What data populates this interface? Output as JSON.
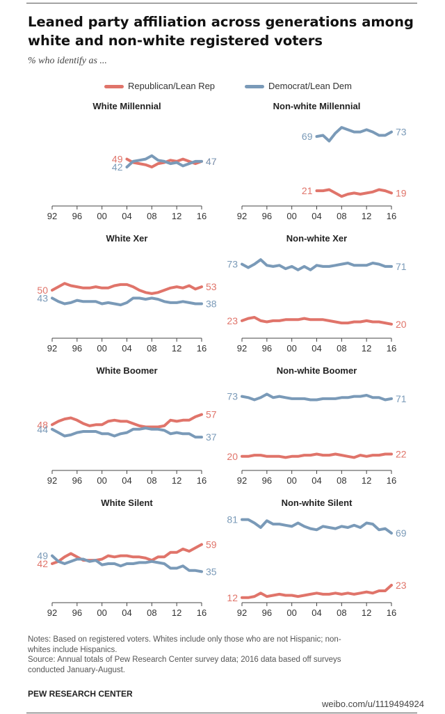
{
  "header": {
    "title_line1": "Leaned party affiliation across generations among",
    "title_line2": "white and non-white registered voters",
    "subtitle": "% who identify as ..."
  },
  "legend": {
    "republican": "Republican/Lean Rep",
    "democrat": "Democrat/Lean Dem"
  },
  "colors": {
    "republican": "#e0746a",
    "democrat": "#7a9ab8",
    "axis": "#444444"
  },
  "chart_data": [
    {
      "type": "line",
      "title": "White Millennial",
      "x_ticks": [
        "92",
        "96",
        "00",
        "04",
        "08",
        "12",
        "16"
      ],
      "xlim": [
        1992,
        2016
      ],
      "ylim": [
        10,
        90
      ],
      "series": [
        {
          "name": "Republican/Lean Rep",
          "x": [
            2004,
            2005,
            2006,
            2007,
            2008,
            2009,
            2010,
            2011,
            2012,
            2013,
            2014,
            2015,
            2016
          ],
          "values": [
            49,
            46,
            45,
            44,
            42,
            45,
            46,
            48,
            47,
            49,
            47,
            45,
            47
          ],
          "start_label": "49",
          "end_label": "47"
        },
        {
          "name": "Democrat/Lean Dem",
          "x": [
            2004,
            2005,
            2006,
            2007,
            2008,
            2009,
            2010,
            2011,
            2012,
            2013,
            2014,
            2015,
            2016
          ],
          "values": [
            42,
            47,
            48,
            49,
            52,
            48,
            47,
            45,
            46,
            43,
            45,
            47,
            47
          ],
          "start_label": "42",
          "end_label": "47"
        }
      ]
    },
    {
      "type": "line",
      "title": "Non-white Millennial",
      "x_ticks": [
        "92",
        "96",
        "00",
        "04",
        "08",
        "12",
        "16"
      ],
      "xlim": [
        1992,
        2016
      ],
      "ylim": [
        10,
        90
      ],
      "series": [
        {
          "name": "Republican/Lean Rep",
          "x": [
            2004,
            2005,
            2006,
            2007,
            2008,
            2009,
            2010,
            2011,
            2012,
            2013,
            2014,
            2015,
            2016
          ],
          "values": [
            21,
            21,
            22,
            19,
            16,
            18,
            19,
            18,
            19,
            20,
            22,
            21,
            19
          ],
          "start_label": "21",
          "end_label": "19"
        },
        {
          "name": "Democrat/Lean Dem",
          "x": [
            2004,
            2005,
            2006,
            2007,
            2008,
            2009,
            2010,
            2011,
            2012,
            2013,
            2014,
            2015,
            2016
          ],
          "values": [
            69,
            70,
            65,
            72,
            77,
            75,
            73,
            73,
            75,
            73,
            70,
            70,
            73
          ],
          "start_label": "69",
          "end_label": "73"
        }
      ]
    },
    {
      "type": "line",
      "title": "White Xer",
      "x_ticks": [
        "92",
        "96",
        "00",
        "04",
        "08",
        "12",
        "16"
      ],
      "xlim": [
        1992,
        2016
      ],
      "ylim": [
        10,
        90
      ],
      "series": [
        {
          "name": "Republican/Lean Rep",
          "x": [
            1992,
            1993,
            1994,
            1995,
            1996,
            1997,
            1998,
            1999,
            2000,
            2001,
            2002,
            2003,
            2004,
            2005,
            2006,
            2007,
            2008,
            2009,
            2010,
            2011,
            2012,
            2013,
            2014,
            2015,
            2016
          ],
          "values": [
            50,
            53,
            56,
            54,
            53,
            52,
            52,
            53,
            52,
            52,
            54,
            55,
            55,
            53,
            50,
            48,
            47,
            48,
            50,
            52,
            53,
            52,
            54,
            51,
            53
          ],
          "start_label": "50",
          "end_label": "53"
        },
        {
          "name": "Democrat/Lean Dem",
          "x": [
            1992,
            1993,
            1994,
            1995,
            1996,
            1997,
            1998,
            1999,
            2000,
            2001,
            2002,
            2003,
            2004,
            2005,
            2006,
            2007,
            2008,
            2009,
            2010,
            2011,
            2012,
            2013,
            2014,
            2015,
            2016
          ],
          "values": [
            43,
            40,
            38,
            39,
            41,
            40,
            40,
            40,
            38,
            39,
            38,
            37,
            39,
            43,
            43,
            42,
            43,
            42,
            40,
            39,
            39,
            40,
            39,
            38,
            38
          ],
          "start_label": "43",
          "end_label": "38"
        }
      ]
    },
    {
      "type": "line",
      "title": "Non-white Xer",
      "x_ticks": [
        "92",
        "96",
        "00",
        "04",
        "08",
        "12",
        "16"
      ],
      "xlim": [
        1992,
        2016
      ],
      "ylim": [
        10,
        90
      ],
      "series": [
        {
          "name": "Republican/Lean Rep",
          "x": [
            1992,
            1993,
            1994,
            1995,
            1996,
            1997,
            1998,
            1999,
            2000,
            2001,
            2002,
            2003,
            2004,
            2005,
            2006,
            2007,
            2008,
            2009,
            2010,
            2011,
            2012,
            2013,
            2014,
            2015,
            2016
          ],
          "values": [
            23,
            25,
            26,
            23,
            22,
            23,
            23,
            24,
            24,
            24,
            25,
            24,
            24,
            24,
            23,
            22,
            21,
            21,
            22,
            22,
            23,
            22,
            22,
            21,
            20
          ],
          "start_label": "23",
          "end_label": "20"
        },
        {
          "name": "Democrat/Lean Dem",
          "x": [
            1992,
            1993,
            1994,
            1995,
            1996,
            1997,
            1998,
            1999,
            2000,
            2001,
            2002,
            2003,
            2004,
            2005,
            2006,
            2007,
            2008,
            2009,
            2010,
            2011,
            2012,
            2013,
            2014,
            2015,
            2016
          ],
          "values": [
            73,
            70,
            73,
            77,
            72,
            71,
            72,
            69,
            71,
            68,
            71,
            68,
            72,
            71,
            71,
            72,
            73,
            74,
            72,
            72,
            72,
            74,
            73,
            71,
            71
          ],
          "start_label": "73",
          "end_label": "71"
        }
      ]
    },
    {
      "type": "line",
      "title": "White Boomer",
      "x_ticks": [
        "92",
        "96",
        "00",
        "04",
        "08",
        "12",
        "16"
      ],
      "xlim": [
        1992,
        2016
      ],
      "ylim": [
        10,
        90
      ],
      "series": [
        {
          "name": "Republican/Lean Rep",
          "x": [
            1992,
            1993,
            1994,
            1995,
            1996,
            1997,
            1998,
            1999,
            2000,
            2001,
            2002,
            2003,
            2004,
            2005,
            2006,
            2007,
            2008,
            2009,
            2010,
            2011,
            2012,
            2013,
            2014,
            2015,
            2016
          ],
          "values": [
            48,
            51,
            53,
            54,
            52,
            49,
            47,
            48,
            48,
            51,
            52,
            51,
            51,
            49,
            47,
            46,
            46,
            46,
            47,
            52,
            51,
            52,
            52,
            55,
            57
          ],
          "start_label": "48",
          "end_label": "57"
        },
        {
          "name": "Democrat/Lean Dem",
          "x": [
            1992,
            1993,
            1994,
            1995,
            1996,
            1997,
            1998,
            1999,
            2000,
            2001,
            2002,
            2003,
            2004,
            2005,
            2006,
            2007,
            2008,
            2009,
            2010,
            2011,
            2012,
            2013,
            2014,
            2015,
            2016
          ],
          "values": [
            44,
            41,
            38,
            39,
            41,
            42,
            42,
            42,
            40,
            40,
            38,
            40,
            41,
            44,
            44,
            45,
            44,
            44,
            43,
            40,
            41,
            40,
            40,
            37,
            37
          ],
          "start_label": "44",
          "end_label": "37"
        }
      ]
    },
    {
      "type": "line",
      "title": "Non-white Boomer",
      "x_ticks": [
        "92",
        "96",
        "00",
        "04",
        "08",
        "12",
        "16"
      ],
      "xlim": [
        1992,
        2016
      ],
      "ylim": [
        10,
        90
      ],
      "series": [
        {
          "name": "Republican/Lean Rep",
          "x": [
            1992,
            1993,
            1994,
            1995,
            1996,
            1997,
            1998,
            1999,
            2000,
            2001,
            2002,
            2003,
            2004,
            2005,
            2006,
            2007,
            2008,
            2009,
            2010,
            2011,
            2012,
            2013,
            2014,
            2015,
            2016
          ],
          "values": [
            20,
            20,
            21,
            21,
            20,
            20,
            20,
            19,
            20,
            20,
            21,
            21,
            22,
            21,
            21,
            22,
            21,
            20,
            19,
            21,
            20,
            21,
            21,
            22,
            22
          ],
          "start_label": "20",
          "end_label": "22"
        },
        {
          "name": "Democrat/Lean Dem",
          "x": [
            1992,
            1993,
            1994,
            1995,
            1996,
            1997,
            1998,
            1999,
            2000,
            2001,
            2002,
            2003,
            2004,
            2005,
            2006,
            2007,
            2008,
            2009,
            2010,
            2011,
            2012,
            2013,
            2014,
            2015,
            2016
          ],
          "values": [
            73,
            72,
            70,
            72,
            75,
            72,
            73,
            72,
            71,
            71,
            71,
            70,
            70,
            71,
            71,
            71,
            72,
            72,
            73,
            73,
            74,
            72,
            72,
            70,
            71
          ],
          "start_label": "73",
          "end_label": "71"
        }
      ]
    },
    {
      "type": "line",
      "title": "White Silent",
      "x_ticks": [
        "92",
        "96",
        "00",
        "04",
        "08",
        "12",
        "16"
      ],
      "xlim": [
        1992,
        2016
      ],
      "ylim": [
        10,
        90
      ],
      "series": [
        {
          "name": "Republican/Lean Rep",
          "x": [
            1992,
            1993,
            1994,
            1995,
            1996,
            1997,
            1998,
            1999,
            2000,
            2001,
            2002,
            2003,
            2004,
            2005,
            2006,
            2007,
            2008,
            2009,
            2010,
            2011,
            2012,
            2013,
            2014,
            2015,
            2016
          ],
          "values": [
            42,
            44,
            48,
            51,
            48,
            45,
            45,
            45,
            46,
            49,
            48,
            49,
            49,
            48,
            48,
            47,
            45,
            48,
            48,
            52,
            52,
            55,
            53,
            56,
            59
          ],
          "start_label": "42",
          "end_label": "59"
        },
        {
          "name": "Democrat/Lean Dem",
          "x": [
            1992,
            1993,
            1994,
            1995,
            1996,
            1997,
            1998,
            1999,
            2000,
            2001,
            2002,
            2003,
            2004,
            2005,
            2006,
            2007,
            2008,
            2009,
            2010,
            2011,
            2012,
            2013,
            2014,
            2015,
            2016
          ],
          "values": [
            49,
            44,
            42,
            44,
            46,
            46,
            44,
            45,
            41,
            42,
            42,
            40,
            42,
            42,
            43,
            43,
            44,
            43,
            42,
            38,
            38,
            40,
            36,
            36,
            35
          ],
          "start_label": "49",
          "end_label": "35"
        }
      ]
    },
    {
      "type": "line",
      "title": "Non-white Silent",
      "x_ticks": [
        "92",
        "96",
        "00",
        "04",
        "08",
        "12",
        "16"
      ],
      "xlim": [
        1992,
        2016
      ],
      "ylim": [
        10,
        90
      ],
      "series": [
        {
          "name": "Republican/Lean Rep",
          "x": [
            1992,
            1993,
            1994,
            1995,
            1996,
            1997,
            1998,
            1999,
            2000,
            2001,
            2002,
            2003,
            2004,
            2005,
            2006,
            2007,
            2008,
            2009,
            2010,
            2011,
            2012,
            2013,
            2014,
            2015,
            2016
          ],
          "values": [
            12,
            12,
            13,
            16,
            13,
            14,
            15,
            14,
            14,
            13,
            14,
            15,
            16,
            15,
            15,
            16,
            15,
            16,
            15,
            16,
            17,
            16,
            18,
            18,
            23
          ],
          "start_label": "12",
          "end_label": "23"
        },
        {
          "name": "Democrat/Lean Dem",
          "x": [
            1992,
            1993,
            1994,
            1995,
            1996,
            1997,
            1998,
            1999,
            2000,
            2001,
            2002,
            2003,
            2004,
            2005,
            2006,
            2007,
            2008,
            2009,
            2010,
            2011,
            2012,
            2013,
            2014,
            2015,
            2016
          ],
          "values": [
            81,
            81,
            78,
            74,
            80,
            77,
            77,
            76,
            75,
            78,
            75,
            73,
            72,
            75,
            74,
            73,
            75,
            74,
            76,
            74,
            78,
            77,
            72,
            73,
            69
          ],
          "start_label": "81",
          "end_label": "69"
        }
      ]
    }
  ],
  "notes": {
    "line1": "Notes: Based on registered voters. Whites include only those who are not Hispanic; non-",
    "line2": "whites include Hispanics.",
    "line3": "Source: Annual totals of Pew Research Center survey data; 2016 data based off surveys",
    "line4": "conducted January-August."
  },
  "source_org": "PEW RESEARCH CENTER",
  "watermark": "weibo.com/u/1119494924"
}
